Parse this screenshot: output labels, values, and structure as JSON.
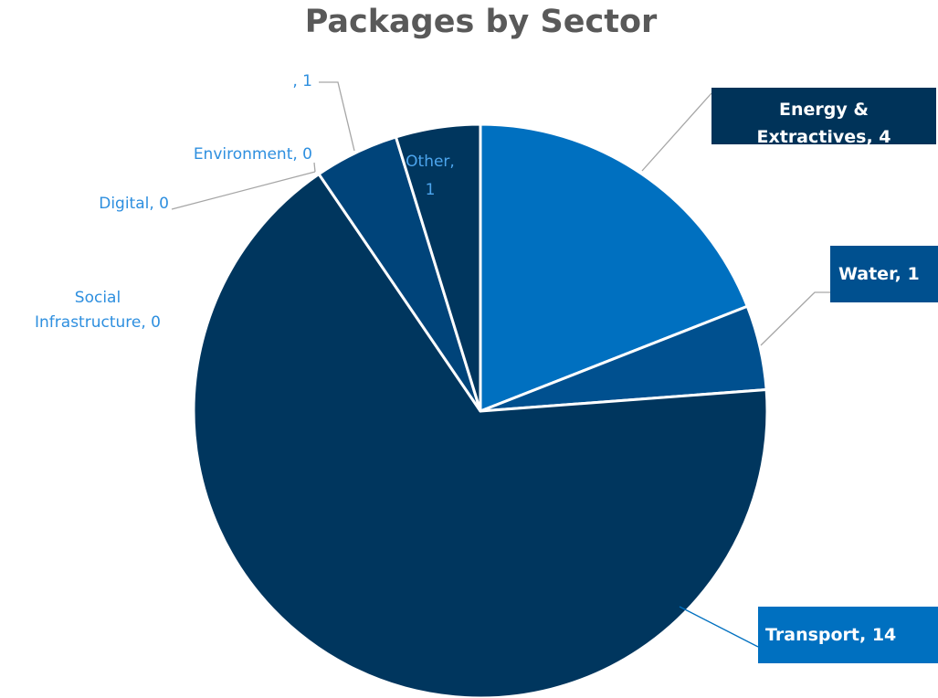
{
  "chart_data": {
    "type": "pie",
    "title": "Packages by Sector",
    "start_angle_deg": 0,
    "direction": "clockwise",
    "slices": [
      {
        "name": "Energy & Extractives",
        "value": 4,
        "color": "#0070C0",
        "label": [
          "Energy &",
          "Extractives, 4"
        ],
        "label_style": "boxed",
        "label_bg": "#003359",
        "label_color": "#ffffff"
      },
      {
        "name": "Water",
        "value": 1,
        "color": "#00508F",
        "label": [
          "Water, 1"
        ],
        "label_style": "boxed",
        "label_bg": "#00508F",
        "label_color": "#ffffff"
      },
      {
        "name": "Transport",
        "value": 14,
        "color": "#00365E",
        "label": [
          "Transport, 14"
        ],
        "label_style": "boxed",
        "label_bg": "#0070C0",
        "label_color": "#ffffff"
      },
      {
        "name": "Social Infrastructure",
        "value": 0,
        "color": "#0070C0",
        "label": [
          "Social",
          "Infrastructure, 0"
        ],
        "label_style": "plain",
        "label_color": "#2E8FDF"
      },
      {
        "name": "Digital",
        "value": 0,
        "color": "#00508F",
        "label": [
          "Digital, 0"
        ],
        "label_style": "plain",
        "label_color": "#2E8FDF"
      },
      {
        "name": "Environment",
        "value": 0,
        "color": "#0070C0",
        "label": [
          "Environment, 0"
        ],
        "label_style": "plain",
        "label_color": "#2E8FDF"
      },
      {
        "name": "",
        "value": 1,
        "color": "#00447A",
        "label": [
          ", 1"
        ],
        "label_style": "plain",
        "label_color": "#2E8FDF"
      },
      {
        "name": "Other",
        "value": 1,
        "color": "#00365E",
        "label": [
          "Other,",
          "1"
        ],
        "label_style": "plain",
        "label_color": "#4DA6EE"
      }
    ]
  }
}
